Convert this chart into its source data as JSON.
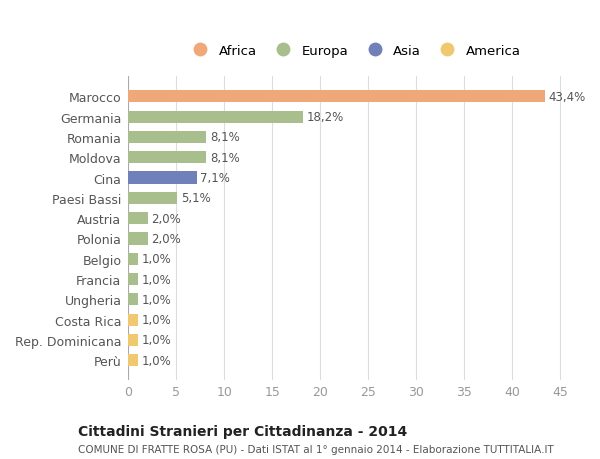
{
  "countries": [
    "Marocco",
    "Germania",
    "Romania",
    "Moldova",
    "Cina",
    "Paesi Bassi",
    "Austria",
    "Polonia",
    "Belgio",
    "Francia",
    "Ungheria",
    "Costa Rica",
    "Rep. Dominicana",
    "Perù"
  ],
  "values": [
    43.4,
    18.2,
    8.1,
    8.1,
    7.1,
    5.1,
    2.0,
    2.0,
    1.0,
    1.0,
    1.0,
    1.0,
    1.0,
    1.0
  ],
  "labels": [
    "43,4%",
    "18,2%",
    "8,1%",
    "8,1%",
    "7,1%",
    "5,1%",
    "2,0%",
    "2,0%",
    "1,0%",
    "1,0%",
    "1,0%",
    "1,0%",
    "1,0%",
    "1,0%"
  ],
  "colors": [
    "#F0A87A",
    "#A8BE8C",
    "#A8BE8C",
    "#A8BE8C",
    "#7080B8",
    "#A8BE8C",
    "#A8BE8C",
    "#A8BE8C",
    "#A8BE8C",
    "#A8BE8C",
    "#A8BE8C",
    "#F0C870",
    "#F0C870",
    "#F0C870"
  ],
  "legend_labels": [
    "Africa",
    "Europa",
    "Asia",
    "America"
  ],
  "legend_colors": [
    "#F0A87A",
    "#A8BE8C",
    "#7080B8",
    "#F0C870"
  ],
  "title": "Cittadini Stranieri per Cittadinanza - 2014",
  "subtitle": "COMUNE DI FRATTE ROSA (PU) - Dati ISTAT al 1° gennaio 2014 - Elaborazione TUTTITALIA.IT",
  "xlim": [
    0,
    47
  ],
  "xticks": [
    0,
    5,
    10,
    15,
    20,
    25,
    30,
    35,
    40,
    45
  ],
  "background_color": "#ffffff",
  "grid_color": "#dddddd"
}
